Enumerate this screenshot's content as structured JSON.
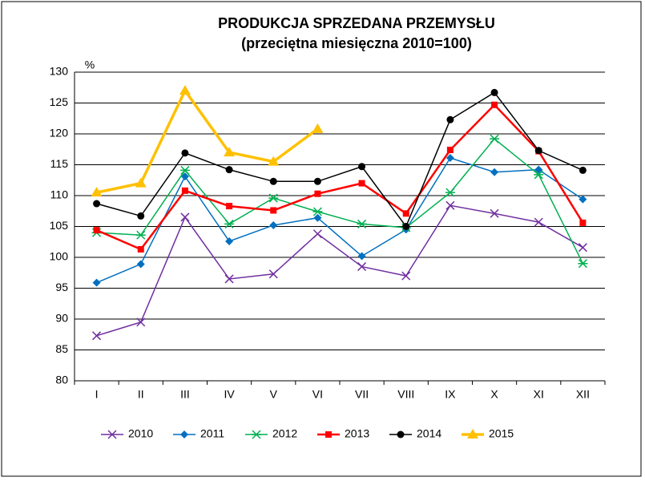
{
  "chart_data": {
    "type": "line",
    "title": "PRODUKCJA  SPRZEDANA  PRZEMYSŁU",
    "subtitle": "(przeciętna miesięczna 2010=100)",
    "y_label": "%",
    "categories": [
      "I",
      "II",
      "III",
      "IV",
      "V",
      "VI",
      "VII",
      "VIII",
      "IX",
      "X",
      "XI",
      "XII"
    ],
    "ylim": [
      80,
      130
    ],
    "yticks": [
      80,
      85,
      90,
      95,
      100,
      105,
      110,
      115,
      120,
      125,
      130
    ],
    "grid": true,
    "legend": "bottom",
    "series": [
      {
        "name": "2010",
        "color": "#7030a0",
        "marker": "x",
        "values": [
          87.3,
          89.5,
          106.5,
          96.5,
          97.3,
          103.8,
          98.5,
          97.0,
          108.4,
          107.1,
          105.7,
          101.6
        ]
      },
      {
        "name": "2011",
        "color": "#0070c0",
        "marker": "diamond",
        "values": [
          95.9,
          98.9,
          113.1,
          102.6,
          105.2,
          106.4,
          100.2,
          104.5,
          116.1,
          113.8,
          114.2,
          109.4
        ]
      },
      {
        "name": "2012",
        "color": "#00b050",
        "marker": "star",
        "values": [
          104.0,
          103.6,
          114.1,
          105.4,
          109.6,
          107.4,
          105.4,
          104.8,
          110.5,
          119.2,
          113.4,
          99.0
        ]
      },
      {
        "name": "2013",
        "color": "#ff0000",
        "marker": "square",
        "values": [
          104.4,
          101.3,
          110.8,
          108.3,
          107.6,
          110.3,
          112.0,
          107.1,
          117.4,
          124.7,
          117.2,
          105.6
        ]
      },
      {
        "name": "2014",
        "color": "#000000",
        "marker": "circle",
        "values": [
          108.7,
          106.7,
          116.9,
          114.2,
          112.3,
          112.3,
          114.7,
          105.0,
          122.3,
          126.7,
          117.3,
          114.1
        ]
      },
      {
        "name": "2015",
        "color": "#ffc000",
        "marker": "triangle",
        "values": [
          110.5,
          112.0,
          127.0,
          117.0,
          115.5,
          120.8,
          null,
          null,
          null,
          null,
          null,
          null
        ]
      }
    ]
  }
}
